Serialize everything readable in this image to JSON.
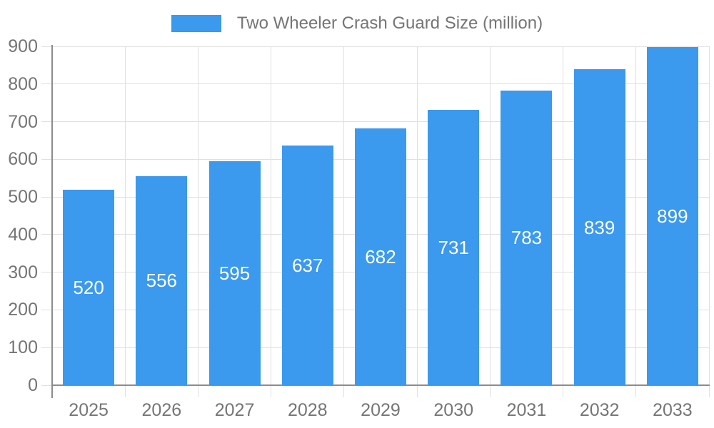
{
  "legend": {
    "label": "Two Wheeler Crash Guard Size (million)"
  },
  "chart_data": {
    "type": "bar",
    "title": "",
    "xlabel": "",
    "ylabel": "",
    "categories": [
      "2025",
      "2026",
      "2027",
      "2028",
      "2029",
      "2030",
      "2031",
      "2032",
      "2033"
    ],
    "series": [
      {
        "name": "Two Wheeler Crash Guard Size (million)",
        "values": [
          520,
          556,
          595,
          637,
          682,
          731,
          783,
          839,
          899
        ]
      }
    ],
    "bar_value_labels": [
      "520",
      "556",
      "595",
      "637",
      "682",
      "731",
      "783",
      "839",
      "899"
    ],
    "ylim": [
      0,
      900
    ],
    "ytick_interval": 100,
    "yticks": [
      "0",
      "100",
      "200",
      "300",
      "400",
      "500",
      "600",
      "700",
      "800",
      "900"
    ],
    "grid": true,
    "legend_position": "top",
    "colors": {
      "bar": "#3B99EE",
      "bar_label_text": "#FFFFFF",
      "axis_text": "#757575",
      "gridline": "#E0E0E0",
      "axis_line": "#8C8C8C",
      "background": "#FFFFFF"
    }
  }
}
